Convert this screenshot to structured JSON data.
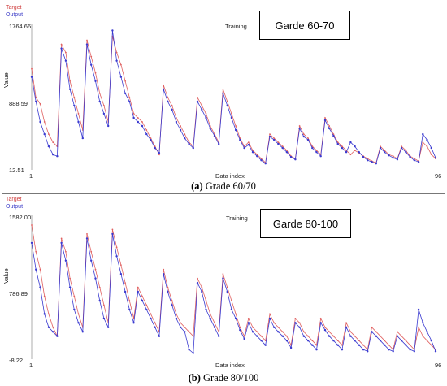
{
  "panels": [
    {
      "id": "a",
      "legend": [
        "Target",
        "Output"
      ],
      "box_label": "Garde 60-70",
      "training_label": "Training",
      "y_ticks": [
        "1764.66",
        "888.59",
        "12.51"
      ],
      "x_ticks": [
        "1",
        "96"
      ],
      "xlabel": "Data index",
      "ylabel": "Value",
      "caption_letter": "(a)",
      "caption_text": "Grade 60/70"
    },
    {
      "id": "b",
      "legend": [
        "Target",
        "Output"
      ],
      "box_label": "Garde 80-100",
      "training_label": "Training",
      "y_ticks": [
        "1582.00",
        "786.89",
        "-8.22"
      ],
      "x_ticks": [
        "1",
        "96"
      ],
      "xlabel": "Data index",
      "ylabel": "Value",
      "caption_letter": "(b)",
      "caption_text": "Grade 80/100"
    }
  ],
  "chart_data": [
    {
      "type": "line",
      "title": "",
      "xlabel": "Data index",
      "ylabel": "Value",
      "xlim": [
        1,
        96
      ],
      "ylim": [
        12.51,
        1764.66
      ],
      "colors": {
        "Target": "#e06060",
        "Output": "#3a3ad0"
      },
      "x_start": 1,
      "series": [
        {
          "name": "Target",
          "values": [
            1250,
            900,
            820,
            600,
            450,
            350,
            300,
            1550,
            1450,
            1100,
            900,
            700,
            500,
            1600,
            1400,
            1200,
            950,
            800,
            600,
            1650,
            1450,
            1300,
            1100,
            900,
            700,
            650,
            600,
            500,
            400,
            300,
            200,
            1050,
            900,
            800,
            650,
            550,
            450,
            350,
            300,
            900,
            800,
            700,
            550,
            450,
            350,
            1000,
            850,
            700,
            550,
            400,
            300,
            350,
            250,
            200,
            150,
            100,
            450,
            400,
            350,
            300,
            250,
            180,
            150,
            550,
            450,
            400,
            300,
            250,
            200,
            650,
            550,
            450,
            350,
            300,
            250,
            200,
            250,
            220,
            180,
            150,
            120,
            100,
            300,
            250,
            200,
            180,
            150,
            300,
            250,
            180,
            150,
            120,
            350,
            300,
            200,
            150
          ]
        },
        {
          "name": "Output",
          "values": [
            1150,
            850,
            600,
            450,
            300,
            200,
            180,
            1500,
            1350,
            1000,
            800,
            600,
            400,
            1550,
            1300,
            1100,
            850,
            700,
            550,
            1720,
            1350,
            1150,
            950,
            850,
            650,
            600,
            550,
            450,
            380,
            280,
            220,
            1000,
            850,
            750,
            600,
            500,
            400,
            330,
            280,
            850,
            750,
            650,
            520,
            430,
            330,
            950,
            800,
            650,
            500,
            380,
            280,
            320,
            230,
            180,
            130,
            90,
            420,
            380,
            330,
            280,
            230,
            170,
            140,
            520,
            420,
            380,
            280,
            230,
            180,
            620,
            520,
            430,
            330,
            280,
            230,
            350,
            300,
            230,
            170,
            130,
            110,
            90,
            280,
            230,
            190,
            160,
            140,
            280,
            230,
            170,
            130,
            110,
            450,
            380,
            280,
            160
          ]
        }
      ]
    },
    {
      "type": "line",
      "title": "",
      "xlabel": "Data index",
      "ylabel": "Value",
      "xlim": [
        1,
        96
      ],
      "ylim": [
        -8.22,
        1582.0
      ],
      "colors": {
        "Target": "#e06060",
        "Output": "#3a3ad0"
      },
      "x_start": 1,
      "series": [
        {
          "name": "Target",
          "values": [
            1500,
            1200,
            1000,
            700,
            500,
            350,
            250,
            1350,
            1200,
            900,
            700,
            500,
            350,
            1400,
            1200,
            1000,
            800,
            600,
            400,
            1450,
            1250,
            1050,
            850,
            650,
            450,
            800,
            700,
            600,
            500,
            400,
            300,
            1000,
            800,
            650,
            500,
            400,
            350,
            300,
            250,
            900,
            800,
            650,
            500,
            400,
            300,
            950,
            800,
            650,
            500,
            350,
            250,
            450,
            350,
            300,
            250,
            200,
            500,
            400,
            350,
            300,
            250,
            150,
            450,
            400,
            300,
            250,
            200,
            150,
            450,
            350,
            300,
            250,
            200,
            150,
            400,
            300,
            250,
            200,
            150,
            100,
            350,
            300,
            250,
            200,
            150,
            100,
            300,
            250,
            200,
            150,
            100,
            350,
            250,
            200,
            150,
            100
          ]
        },
        {
          "name": "Output",
          "values": [
            1300,
            1000,
            800,
            500,
            350,
            300,
            250,
            1300,
            1100,
            800,
            550,
            400,
            300,
            1350,
            1100,
            900,
            650,
            450,
            350,
            1400,
            1150,
            950,
            750,
            550,
            400,
            750,
            650,
            550,
            450,
            350,
            250,
            950,
            750,
            600,
            450,
            350,
            300,
            100,
            60,
            850,
            750,
            550,
            450,
            350,
            250,
            900,
            750,
            550,
            450,
            320,
            220,
            400,
            300,
            250,
            200,
            150,
            450,
            350,
            300,
            250,
            200,
            120,
            400,
            350,
            250,
            200,
            150,
            100,
            400,
            320,
            250,
            200,
            150,
            100,
            350,
            250,
            200,
            150,
            100,
            80,
            300,
            250,
            200,
            150,
            100,
            80,
            250,
            200,
            150,
            100,
            80,
            550,
            400,
            300,
            200,
            80
          ]
        }
      ]
    }
  ]
}
